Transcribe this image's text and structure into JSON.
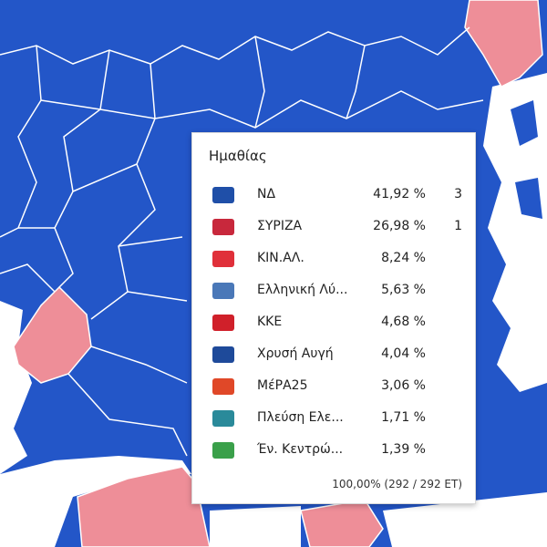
{
  "colors": {
    "nd_region": "#2356c8",
    "syriza_region": "#ee8e98",
    "sea": "#ffffff"
  },
  "tooltip": {
    "title": "Ημαθίας",
    "parties": [
      {
        "name": "ΝΔ",
        "percent": "41,92 %",
        "seats": "3",
        "logo": "nd-logo",
        "color": "#1f4fa8"
      },
      {
        "name": "ΣΥΡΙΖΑ",
        "percent": "26,98 %",
        "seats": "1",
        "logo": "syriza-logo",
        "color": "#c8283c"
      },
      {
        "name": "ΚΙΝ.ΑΛ.",
        "percent": "8,24 %",
        "seats": "",
        "logo": "kinal-logo",
        "color": "#e0303a"
      },
      {
        "name": "Ελληνική Λύ...",
        "percent": "5,63 %",
        "seats": "",
        "logo": "elliniki-lysi-logo",
        "color": "#4a78b8"
      },
      {
        "name": "ΚΚΕ",
        "percent": "4,68 %",
        "seats": "",
        "logo": "kke-logo",
        "color": "#d0202a"
      },
      {
        "name": "Χρυσή Αυγή",
        "percent": "4,04 %",
        "seats": "",
        "logo": "chrysi-avgi-logo",
        "color": "#1e4a9a"
      },
      {
        "name": "ΜέΡΑ25",
        "percent": "3,06 %",
        "seats": "",
        "logo": "mera25-logo",
        "color": "#e04828"
      },
      {
        "name": "Πλεύση Ελε...",
        "percent": "1,71 %",
        "seats": "",
        "logo": "plefsi-logo",
        "color": "#2a8a9a"
      },
      {
        "name": "Έν. Κεντρώ...",
        "percent": "1,39 %",
        "seats": "",
        "logo": "enosi-kentroon-logo",
        "color": "#3aa04a"
      }
    ],
    "footer": "100,00% (292 / 292 ET)"
  }
}
